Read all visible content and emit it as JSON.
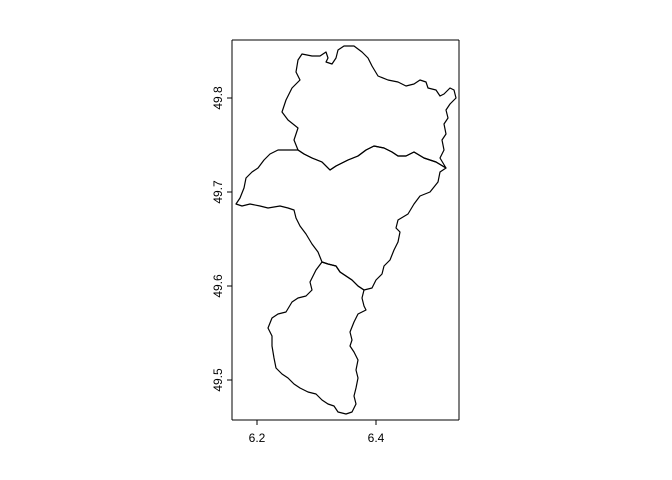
{
  "map": {
    "x_ticks": [
      "6.2",
      "6.4"
    ],
    "y_ticks": [
      "49.5",
      "49.6",
      "49.7",
      "49.8"
    ],
    "colors": {
      "stroke": "#000000",
      "background": "#ffffff"
    },
    "regions": [
      {
        "id": "north"
      },
      {
        "id": "middle"
      },
      {
        "id": "south"
      }
    ]
  }
}
